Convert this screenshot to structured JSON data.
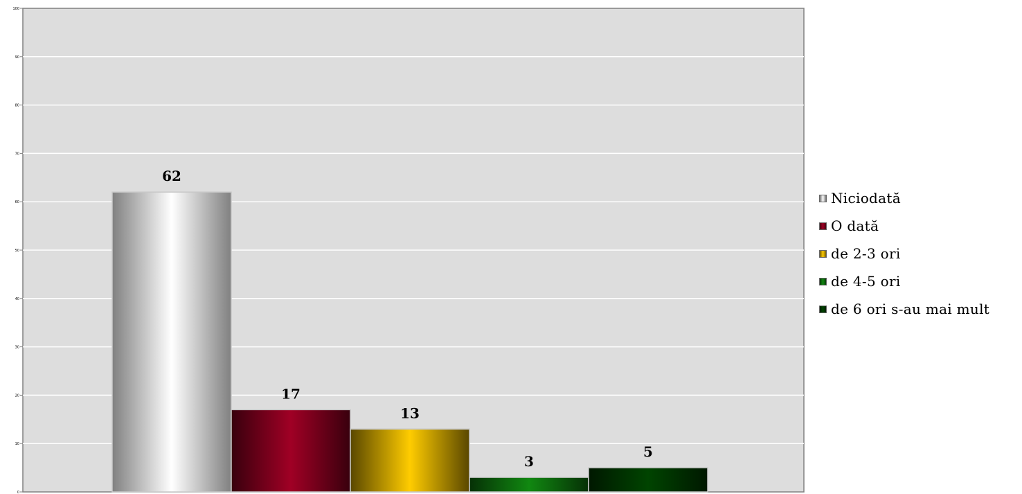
{
  "chart_data": {
    "type": "bar",
    "title": "",
    "xlabel": "",
    "ylabel": "",
    "ylim": [
      0,
      100
    ],
    "yticks": [
      "0",
      "10",
      "20",
      "30",
      "40",
      "50",
      "60",
      "70",
      "80",
      "90",
      "100"
    ],
    "grid": true,
    "legend_position": "right",
    "categories": [
      "Niciodată",
      "O dată",
      "de 2-3 ori",
      "de 4-5 ori",
      "de 6 ori s-au mai mult"
    ],
    "values": [
      62,
      17,
      13,
      3,
      5
    ],
    "colors": [
      "#ffffff",
      "#a00025",
      "#ffcc00",
      "#118811",
      "#004400"
    ],
    "plot_background": "#dddddd"
  }
}
